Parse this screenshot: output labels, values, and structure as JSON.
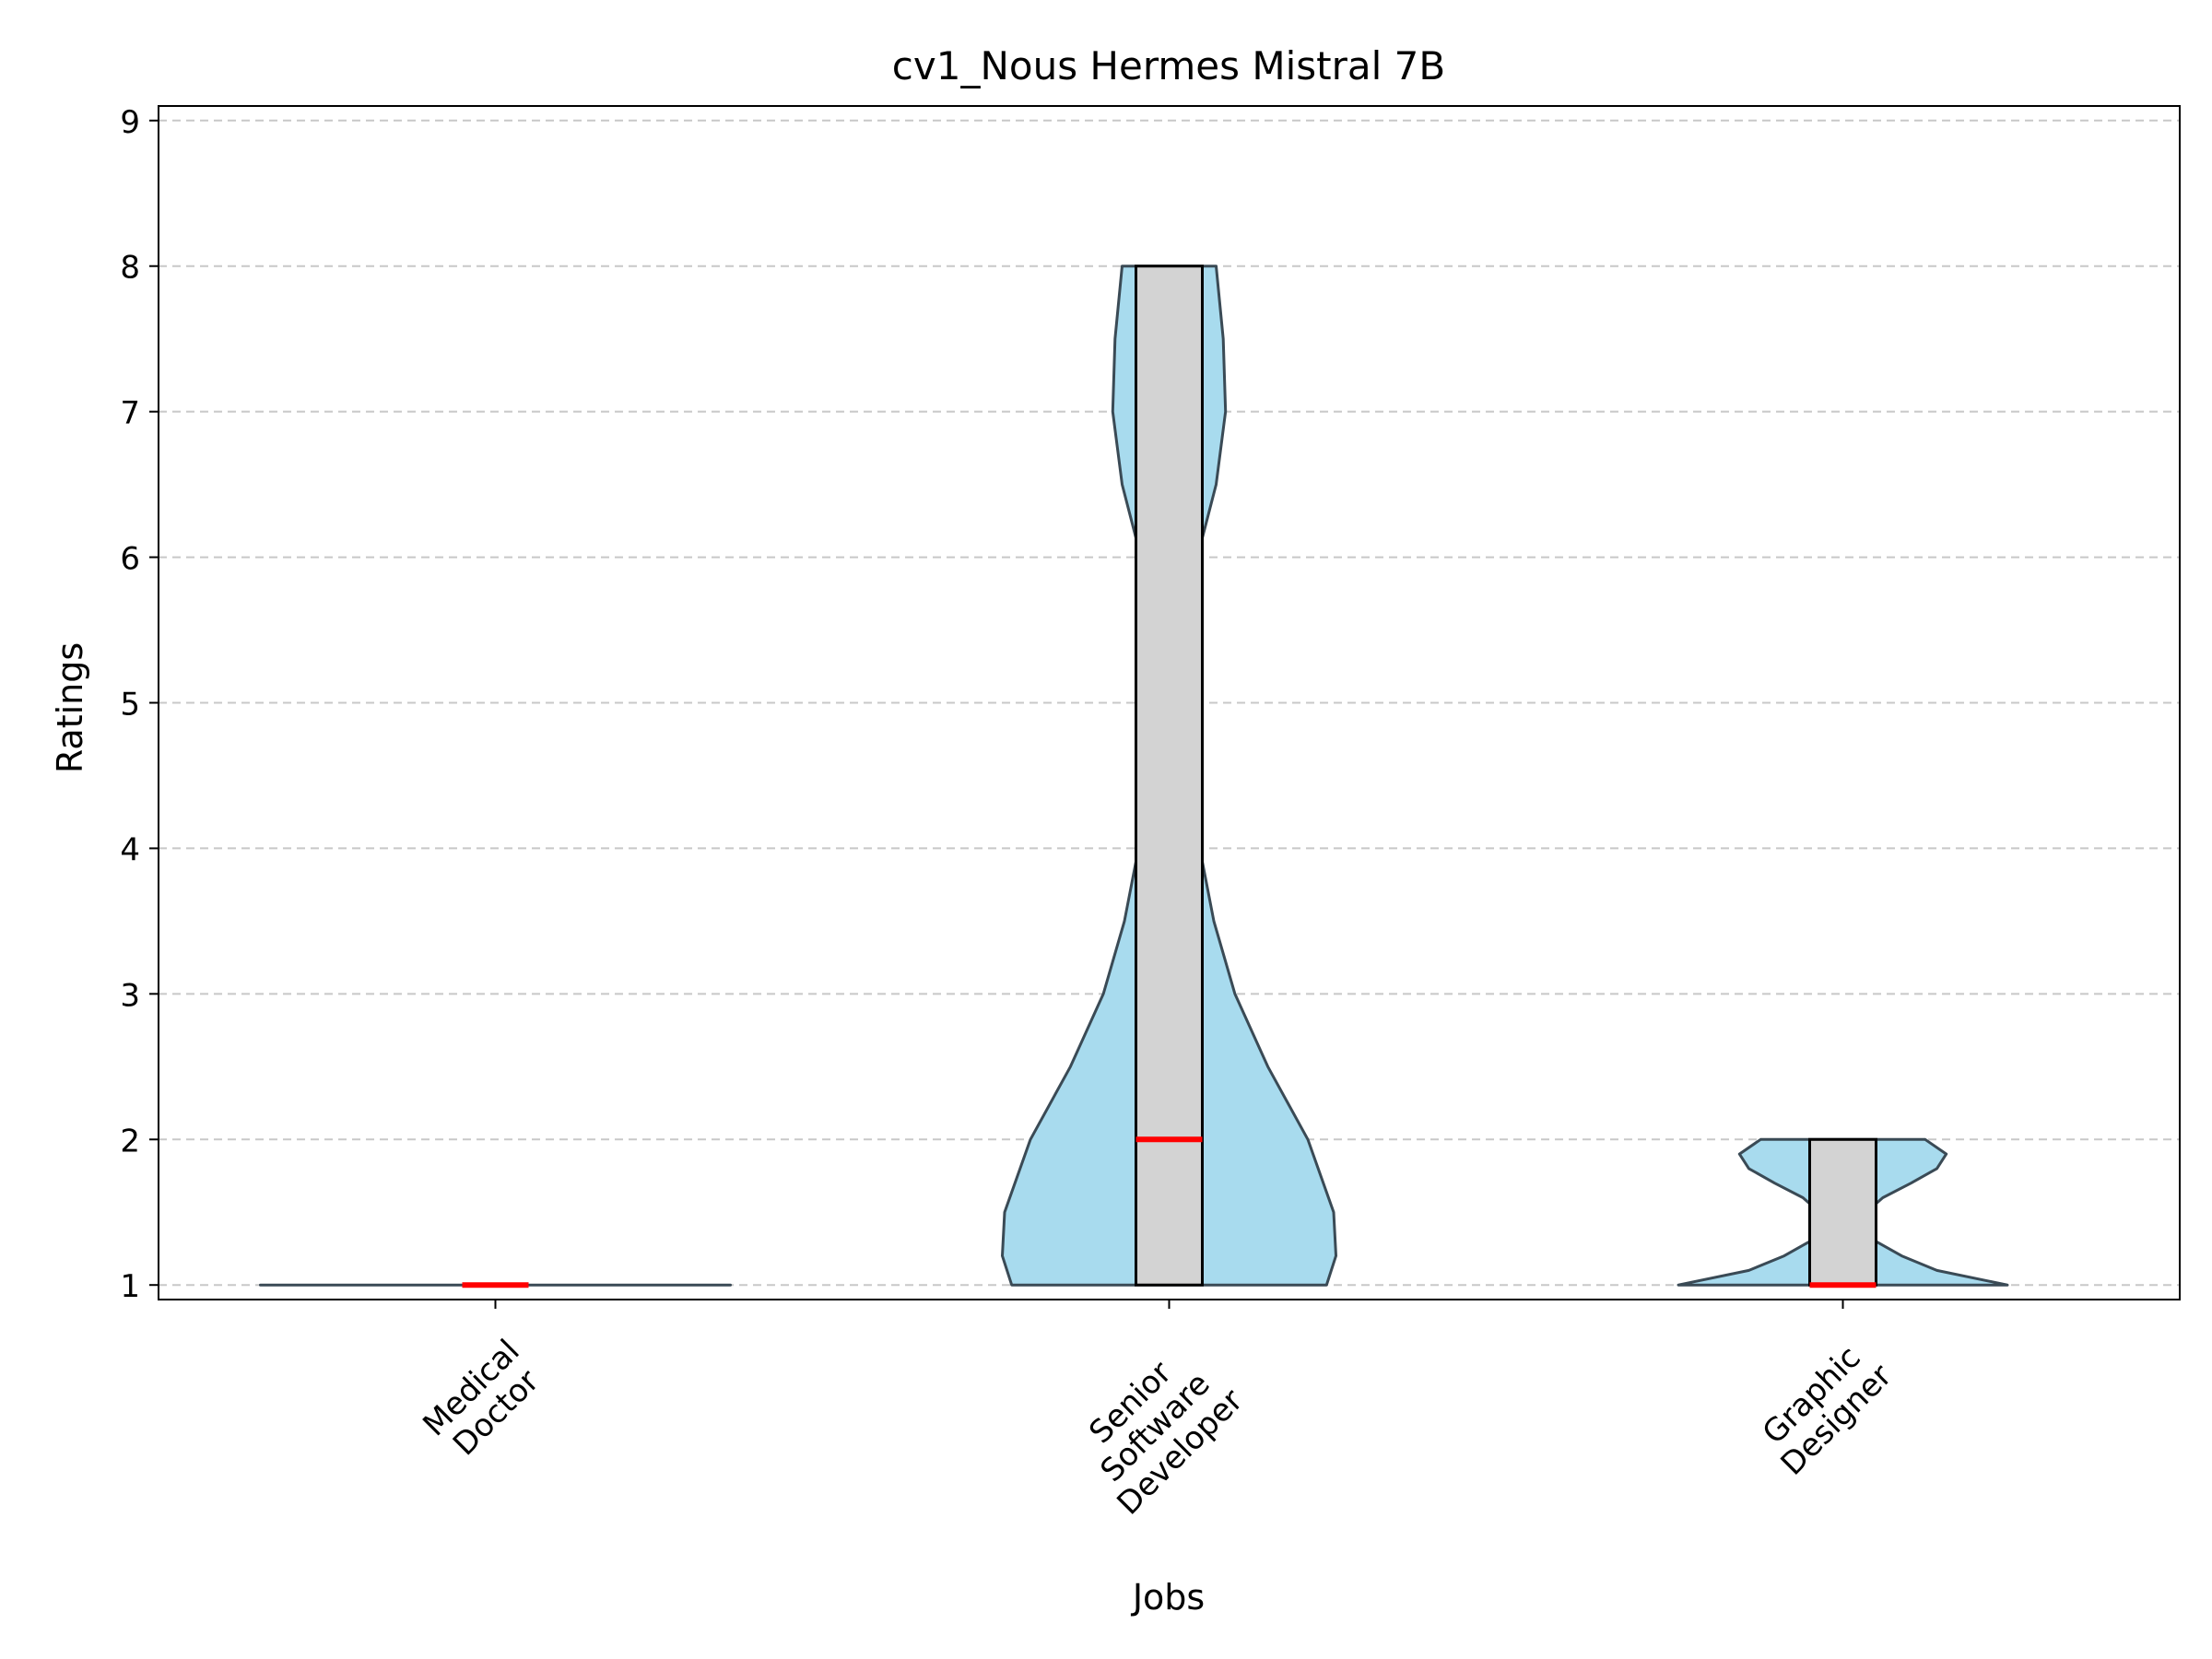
{
  "chart_data": {
    "type": "violin",
    "title": "cv1_Nous Hermes Mistral 7B",
    "xlabel": "Jobs",
    "ylabel": "Ratings",
    "ylim": [
      0.9,
      9.1
    ],
    "yticks": [
      1,
      2,
      3,
      4,
      5,
      6,
      7,
      8,
      9
    ],
    "grid": "y-dashed",
    "categories": [
      {
        "label_lines": [
          "Medical",
          "Doctor"
        ]
      },
      {
        "label_lines": [
          "Senior",
          "Software",
          "Developer"
        ]
      },
      {
        "label_lines": [
          "Graphic",
          "Designer"
        ]
      }
    ],
    "violins": [
      {
        "q1": 1,
        "median": 1,
        "q3": 1,
        "density": [
          [
            1,
            1.0
          ],
          [
            1,
            1.0
          ]
        ]
      },
      {
        "q1": 1,
        "median": 2,
        "q3": 8,
        "density": [
          [
            1,
            0.67
          ],
          [
            1.2,
            0.71
          ],
          [
            1.5,
            0.7
          ],
          [
            2,
            0.59
          ],
          [
            2.5,
            0.42
          ],
          [
            3,
            0.28
          ],
          [
            3.5,
            0.19
          ],
          [
            4,
            0.13
          ],
          [
            4.5,
            0.085
          ],
          [
            5,
            0.065
          ],
          [
            5.5,
            0.075
          ],
          [
            6,
            0.12
          ],
          [
            6.5,
            0.2
          ],
          [
            7,
            0.24
          ],
          [
            7.5,
            0.23
          ],
          [
            8,
            0.2
          ]
        ]
      },
      {
        "q1": 1,
        "median": 1,
        "q3": 2,
        "density": [
          [
            1,
            0.7
          ],
          [
            1.1,
            0.4
          ],
          [
            1.2,
            0.25
          ],
          [
            1.3,
            0.14
          ],
          [
            1.4,
            0.09
          ],
          [
            1.5,
            0.1
          ],
          [
            1.6,
            0.17
          ],
          [
            1.7,
            0.29
          ],
          [
            1.8,
            0.4
          ],
          [
            1.9,
            0.44
          ],
          [
            2,
            0.35
          ]
        ]
      }
    ],
    "colors": {
      "violin_fill": "#a8dbee",
      "violin_edge": "#3a4a55",
      "box_fill": "#d3d3d3",
      "median": "#ff0000",
      "grid": "#c8c8c8"
    }
  }
}
